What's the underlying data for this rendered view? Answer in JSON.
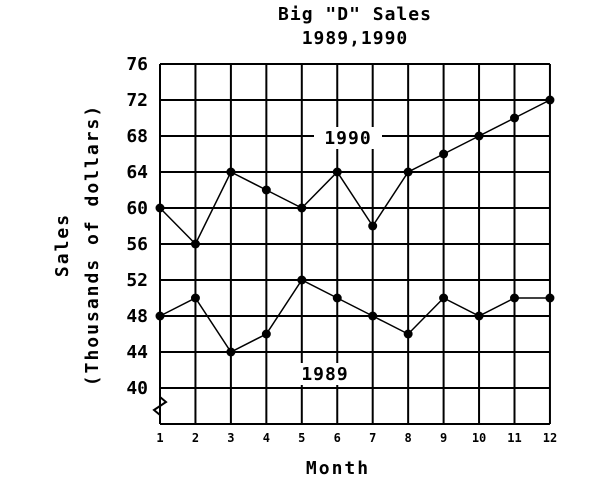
{
  "chart_data": {
    "type": "line",
    "title": "Big \"D\" Sales",
    "subtitle": "1989,1990",
    "xlabel": "Month",
    "ylabel": "Sales",
    "ylabel_sub": "(Thousands of dollars)",
    "categories": [
      "1",
      "2",
      "3",
      "4",
      "5",
      "6",
      "7",
      "8",
      "9",
      "10",
      "11",
      "12"
    ],
    "yticks": [
      40,
      44,
      48,
      52,
      56,
      60,
      64,
      68,
      72,
      76
    ],
    "ylim": [
      36,
      76
    ],
    "grid": true,
    "series": [
      {
        "name": "1990",
        "values": [
          60,
          56,
          64,
          62,
          60,
          64,
          58,
          64,
          66,
          68,
          70,
          72
        ]
      },
      {
        "name": "1989",
        "values": [
          48,
          50,
          44,
          46,
          52,
          50,
          48,
          46,
          50,
          48,
          50,
          50
        ]
      }
    ]
  }
}
